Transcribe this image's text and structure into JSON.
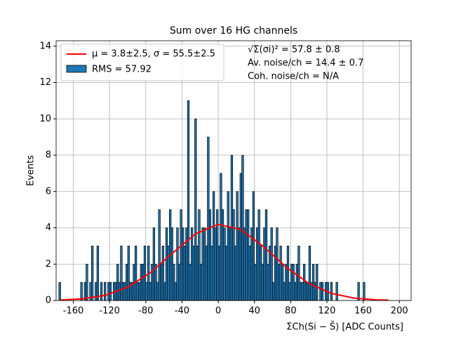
{
  "chart_data": {
    "type": "histogram",
    "title": "Sum over 16 HG channels",
    "xlabel": "ΣCh(Si − S̄) [ADC Counts]",
    "ylabel": "Events",
    "bins": [
      -176,
      -174,
      -172,
      -170,
      -168,
      -166,
      -164,
      -162,
      -160,
      -158,
      -156,
      -154,
      -152,
      -150,
      -148,
      -146,
      -144,
      -142,
      -140,
      -138,
      -136,
      -134,
      -132,
      -130,
      -128,
      -126,
      -124,
      -122,
      -120,
      -118,
      -116,
      -114,
      -112,
      -110,
      -108,
      -106,
      -104,
      -102,
      -100,
      -98,
      -96,
      -94,
      -92,
      -90,
      -88,
      -86,
      -84,
      -82,
      -80,
      -78,
      -76,
      -74,
      -72,
      -70,
      -68,
      -66,
      -64,
      -62,
      -60,
      -58,
      -56,
      -54,
      -52,
      -50,
      -48,
      -46,
      -44,
      -42,
      -40,
      -38,
      -36,
      -34,
      -32,
      -30,
      -28,
      -26,
      -24,
      -22,
      -20,
      -18,
      -16,
      -14,
      -12,
      -10,
      -8,
      -6,
      -4,
      -2,
      0,
      2,
      4,
      6,
      8,
      10,
      12,
      14,
      16,
      18,
      20,
      22,
      24,
      26,
      28,
      30,
      32,
      34,
      36,
      38,
      40,
      42,
      44,
      46,
      48,
      50,
      52,
      54,
      56,
      58,
      60,
      62,
      64,
      66,
      68,
      70,
      72,
      74,
      76,
      78,
      80,
      82,
      84,
      86,
      88,
      90,
      92,
      94,
      96,
      98,
      100,
      102,
      104,
      106,
      108,
      110,
      112,
      114,
      116,
      118,
      120,
      122,
      124,
      126,
      128,
      130,
      132,
      134,
      136,
      138,
      140,
      142,
      144,
      146,
      148,
      150,
      152,
      154,
      156,
      158,
      160,
      162,
      164,
      166,
      168,
      170,
      172,
      174,
      176,
      178,
      180,
      182,
      184,
      186,
      188
    ],
    "counts": [
      1,
      0,
      0,
      0,
      0,
      0,
      0,
      0,
      0,
      0,
      0,
      0,
      1,
      0,
      1,
      2,
      0,
      1,
      3,
      0,
      1,
      3,
      0,
      1,
      0,
      1,
      0,
      1,
      1,
      0,
      1,
      1,
      2,
      1,
      3,
      1,
      1,
      2,
      3,
      1,
      1,
      2,
      3,
      1,
      1,
      2,
      2,
      3,
      1,
      3,
      1,
      2,
      4,
      2,
      1,
      5,
      2,
      3,
      1,
      4,
      3,
      5,
      4,
      2,
      1,
      4,
      2,
      5,
      4,
      3,
      4,
      11,
      2,
      4,
      3,
      10,
      3,
      5,
      2,
      4,
      4,
      3,
      9,
      5,
      3,
      6,
      4,
      5,
      3,
      7,
      5,
      4,
      3,
      6,
      4,
      8,
      5,
      3,
      6,
      4,
      7,
      8,
      4,
      5,
      5,
      3,
      4,
      6,
      2,
      4,
      5,
      3,
      2,
      4,
      5,
      2,
      3,
      4,
      1,
      3,
      4,
      2,
      3,
      2,
      1,
      2,
      3,
      1,
      2,
      2,
      1,
      2,
      3,
      1,
      1,
      2,
      1,
      1,
      3,
      1,
      2,
      1,
      2,
      0,
      1,
      1,
      0,
      1,
      1,
      0,
      1,
      0,
      0,
      1,
      0,
      0,
      0,
      0,
      0,
      0,
      0,
      0,
      0,
      0,
      0,
      1,
      0,
      0,
      1,
      0,
      0,
      0,
      0,
      0,
      0,
      0,
      0,
      0,
      0,
      0,
      0,
      0
    ],
    "color": "#1f77b4",
    "fit": {
      "name": "μ = 3.8±2.5, σ = 55.5±2.5",
      "color": "#ff0000",
      "x": [
        -175,
        -150,
        -125,
        -100,
        -75,
        -50,
        -25,
        0,
        25,
        50,
        75,
        100,
        125,
        150,
        175,
        188
      ],
      "values": [
        0.023,
        0.09,
        0.284,
        0.73,
        1.53,
        2.63,
        3.67,
        4.19,
        3.9,
        2.97,
        1.84,
        0.94,
        0.39,
        0.13,
        0.036,
        0.017
      ]
    },
    "hist_name": "RMS = 57.92",
    "annotations": [
      "√Σ(σi)² = 57.8 ± 0.8",
      "Av. noise/ch  = 14.4 ± 0.7",
      "Coh. noise/ch = N/A"
    ],
    "xlim": [
      -179,
      213
    ],
    "ylim": [
      0,
      14.3
    ],
    "xticks": [
      -160,
      -120,
      -80,
      -40,
      0,
      40,
      80,
      120,
      160,
      200
    ],
    "yticks": [
      0,
      2,
      4,
      6,
      8,
      10,
      12,
      14
    ],
    "grid": true,
    "legend": "upper left"
  }
}
